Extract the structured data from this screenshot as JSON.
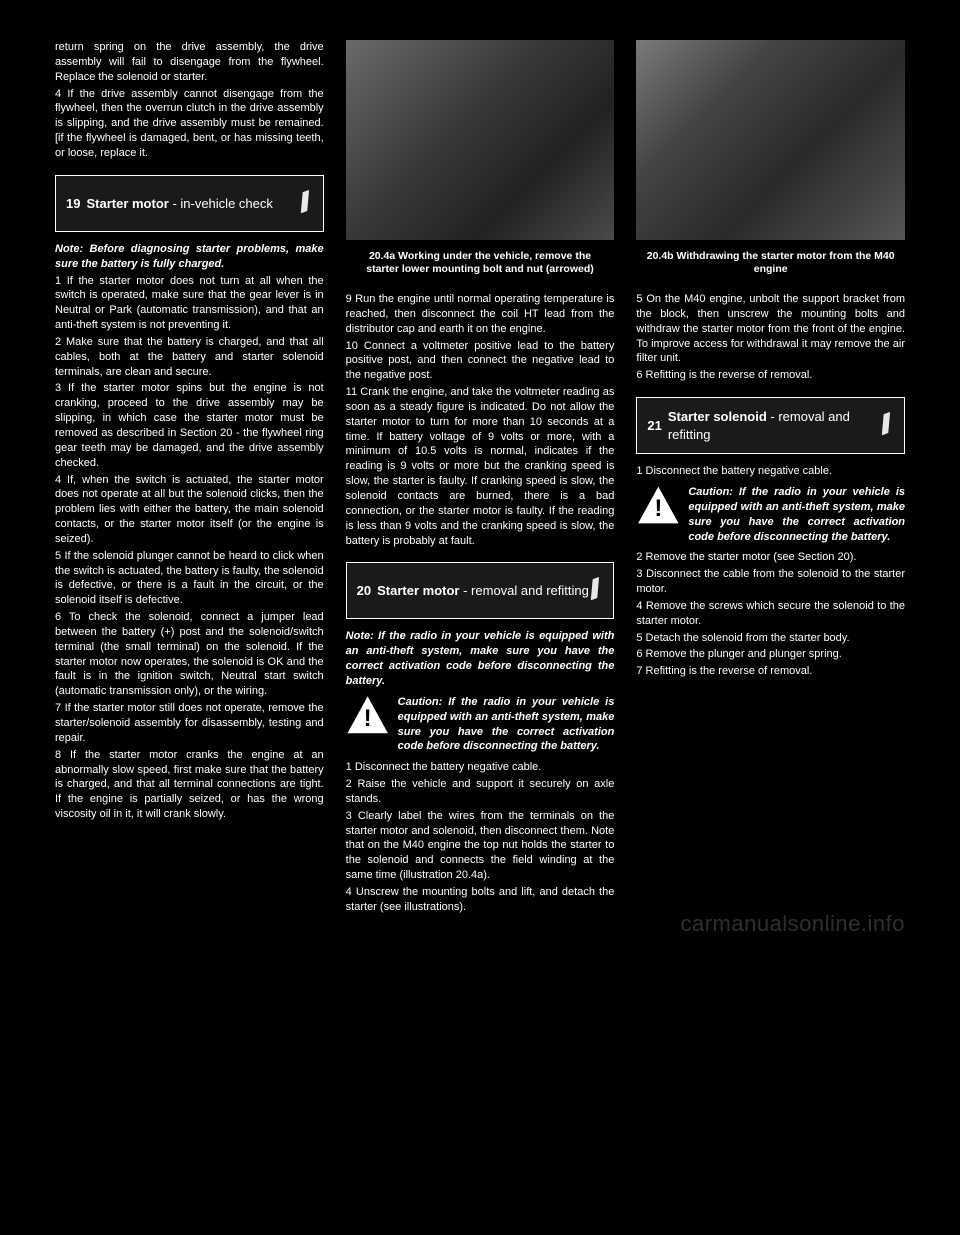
{
  "col1": {
    "intro": [
      "return spring on the drive assembly, the drive assembly will fail to disengage from the flywheel. Replace the solenoid or starter.",
      "4 If the drive assembly cannot disengage from the flywheel, then the overrun clutch in the drive assembly is slipping, and the drive assembly must be remained. [if the flywheel is damaged, bent, or has missing teeth, or loose, replace it."
    ]
  },
  "section19": {
    "num": "19",
    "title_bold": "Starter motor",
    "title_rest": " - in-vehicle check",
    "note": "Note: Before diagnosing starter problems, make sure the battery is fully charged.",
    "paras": [
      "1 If the starter motor does not turn at all when the switch is operated, make sure that the gear lever is in Neutral or Park (automatic transmission), and that an anti-theft system is not preventing it.",
      "2 Make sure that the battery is charged, and that all cables, both at the battery and starter solenoid terminals, are clean and secure.",
      "3 If the starter motor spins but the engine is not cranking, proceed to the drive assembly may be slipping, in which case the starter motor must be removed as described in Section 20 - the flywheel ring gear teeth may be damaged, and the drive assembly checked.",
      "4 If, when the switch is actuated, the starter motor does not operate at all but the solenoid clicks, then the problem lies with either the battery, the main solenoid contacts, or the starter motor itself (or the engine is seized).",
      "5 If the solenoid plunger cannot be heard to click when the switch is actuated, the battery is faulty, the solenoid is defective, or there is a fault in the circuit, or the solenoid itself is defective.",
      "6 To check the solenoid, connect a jumper lead between the battery (+) post and the solenoid/switch terminal (the small terminal) on the solenoid. If the starter motor now operates, the solenoid is OK and the fault is in the ignition switch, Neutral start switch (automatic transmission only), or the wiring.",
      "7 If the starter motor still does not operate, remove the starter/solenoid assembly for disassembly, testing and repair.",
      "8 If the starter motor cranks the engine at an abnormally slow speed, first make sure that the battery is charged, and that all terminal connections are tight. If the engine is partially seized, or has the wrong viscosity oil in it, it will crank slowly."
    ]
  },
  "col2": {
    "fig_caption": "20.4a  Working under the vehicle, remove the starter lower mounting bolt and nut (arrowed)",
    "paras_top": [
      "9 Run the engine until normal operating temperature is reached, then disconnect the coil HT lead from the distributor cap and earth it on the engine.",
      "10 Connect a voltmeter positive lead to the battery positive post, and then connect the negative lead to the negative post.",
      "11 Crank the engine, and take the voltmeter reading as soon as a steady figure is indicated. Do not allow the starter motor to turn for more than 10 seconds at a time. If battery voltage of 9 volts or more, with a minimum of 10.5 volts is normal, indicates if the reading is 9 volts or more but the cranking speed is slow, the starter is faulty. If cranking speed is slow, the solenoid contacts are burned, there is a bad connection, or the starter motor is faulty. If the reading is less than 9 volts and the cranking speed is slow, the battery is probably at fault."
    ]
  },
  "section20": {
    "num": "20",
    "title_bold": "Starter motor",
    "title_rest": " - removal and refitting",
    "paras": [
      "Note: If the radio in your vehicle is equipped with an anti-theft system, make sure you have the correct activation code before disconnecting the battery."
    ],
    "warn": "Caution: If the radio in your vehicle is equipped with an anti-theft system, make sure you have the correct activation code before disconnecting the battery.",
    "paras2": [
      "1 Disconnect the battery negative cable.",
      "2 Raise the vehicle and support it securely on axle stands.",
      "3 Clearly label the wires from the terminals on the starter motor and solenoid, then disconnect them. Note that on the M40 engine the top nut holds the starter to the solenoid and connects the field winding at the same time (illustration 20.4a).",
      "4 Unscrew the mounting bolts and lift, and detach the starter (see illustrations)."
    ]
  },
  "col3": {
    "fig_caption": "20.4b  Withdrawing the starter motor from the M40 engine",
    "paras_top": [
      "5 On the M40 engine, unbolt the support bracket from the block, then unscrew the mounting bolts and withdraw the starter motor from the front of the engine. To improve access for withdrawal it may remove the air filter unit.",
      "6 Refitting is the reverse of removal."
    ]
  },
  "section21": {
    "num": "21",
    "title_bold": "Starter solenoid",
    "title_rest": " - removal and refitting",
    "paras1": [
      "1 Disconnect the battery negative cable."
    ],
    "warn": "Caution: If the radio in your vehicle is equipped with an anti-theft system, make sure you have the correct activation code before disconnecting the battery.",
    "paras2": [
      "2 Remove the starter motor (see Section 20).",
      "3 Disconnect the cable from the solenoid to the starter motor.",
      "4 Remove the screws which secure the solenoid to the starter motor.",
      "5 Detach the solenoid from the starter body.",
      "6 Remove the plunger and plunger spring.",
      "7 Refitting is the reverse of removal."
    ]
  },
  "watermark": "carmanualsonline.info"
}
